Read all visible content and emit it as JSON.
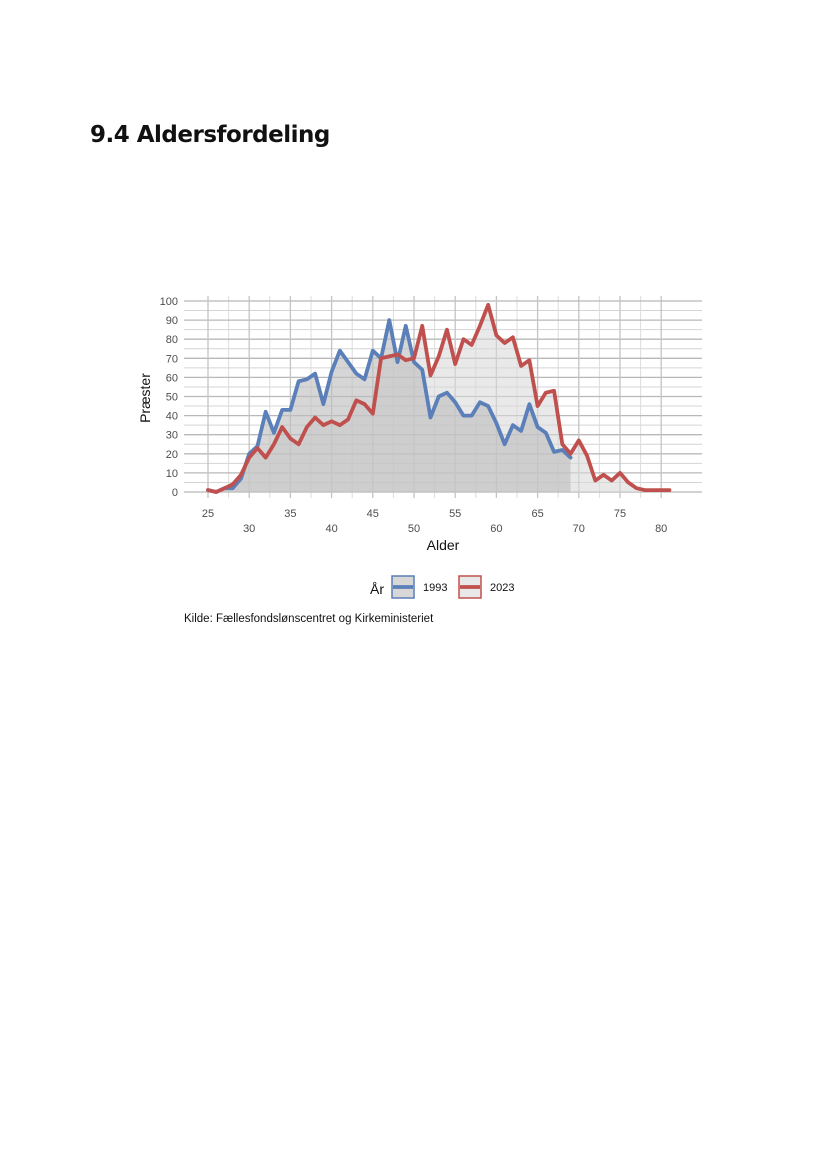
{
  "heading": "9.4 Aldersfordeling",
  "source": "Kilde: Fællesfondslønscentret og Kirkeministeriet",
  "chart_data": {
    "type": "area",
    "xlabel": "Alder",
    "ylabel": "Præster",
    "xlim": [
      25,
      81
    ],
    "ylim": [
      0,
      100
    ],
    "x_ticks": [
      25,
      30,
      35,
      40,
      45,
      50,
      55,
      60,
      65,
      70,
      75,
      80
    ],
    "y_ticks": [
      0,
      10,
      20,
      30,
      40,
      50,
      60,
      70,
      80,
      90,
      100
    ],
    "grid": true,
    "legend": {
      "title": "År",
      "position": "bottom",
      "entries": [
        "1993",
        "2023"
      ]
    },
    "colors": {
      "1993": "#5b7fb8",
      "2023": "#c0504d",
      "area_1993": "#bdbdbd",
      "area_2023": "#d9d9d9"
    },
    "series": [
      {
        "name": "1993",
        "x": [
          25,
          26,
          27,
          28,
          29,
          30,
          31,
          32,
          33,
          34,
          35,
          36,
          37,
          38,
          39,
          40,
          41,
          42,
          43,
          44,
          45,
          46,
          47,
          48,
          49,
          50,
          51,
          52,
          53,
          54,
          55,
          56,
          57,
          58,
          59,
          60,
          61,
          62,
          63,
          64,
          65,
          66,
          67,
          68,
          69
        ],
        "values": [
          1,
          0,
          2,
          2,
          7,
          20,
          24,
          42,
          31,
          43,
          43,
          58,
          59,
          62,
          46,
          63,
          74,
          68,
          62,
          59,
          74,
          70,
          90,
          68,
          87,
          68,
          64,
          39,
          50,
          52,
          47,
          40,
          40,
          47,
          45,
          36,
          25,
          35,
          32,
          46,
          34,
          31,
          21,
          22,
          18
        ]
      },
      {
        "name": "2023",
        "x": [
          25,
          26,
          27,
          28,
          29,
          30,
          31,
          32,
          33,
          34,
          35,
          36,
          37,
          38,
          39,
          40,
          41,
          42,
          43,
          44,
          45,
          46,
          47,
          48,
          49,
          50,
          51,
          52,
          53,
          54,
          55,
          56,
          57,
          58,
          59,
          60,
          61,
          62,
          63,
          64,
          65,
          66,
          67,
          68,
          69,
          70,
          71,
          72,
          73,
          74,
          75,
          76,
          77,
          78,
          79,
          80,
          81
        ],
        "values": [
          1,
          0,
          2,
          4,
          9,
          18,
          23,
          18,
          25,
          34,
          28,
          25,
          34,
          39,
          35,
          37,
          35,
          38,
          48,
          46,
          41,
          70,
          71,
          72,
          69,
          70,
          87,
          61,
          71,
          85,
          67,
          80,
          77,
          87,
          98,
          82,
          78,
          81,
          66,
          69,
          45,
          52,
          53,
          25,
          20,
          27,
          19,
          6,
          9,
          6,
          10,
          5,
          2,
          1,
          1,
          1,
          1
        ]
      }
    ]
  }
}
